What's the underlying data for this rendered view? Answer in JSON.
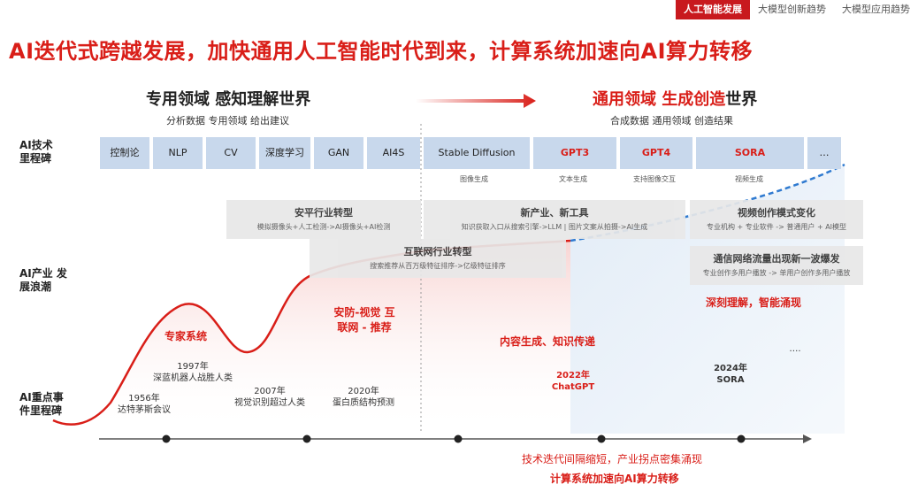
{
  "top_tabs": [
    {
      "label": "人工智能发展",
      "active": true
    },
    {
      "label": "大模型创新趋势",
      "active": false
    },
    {
      "label": "大模型应用趋势",
      "active": false
    }
  ],
  "headline": "AI迭代式跨越发展，加快通用人工智能时代到来，计算系统加速向AI算力转移",
  "left_era": {
    "title_part1": "专用领域 感知理解世界",
    "subtitle": "分析数据 专用领域 给出建议"
  },
  "right_era": {
    "title_red": "通用领域 生成创造",
    "title_black": "世界",
    "subtitle": "合成数据 通用领域 创造结果"
  },
  "row_labels": {
    "tech": "AI技术 里程碑",
    "industry": "AI产业 发展浪潮",
    "events": "AI重点事 件里程碑"
  },
  "tech_pills": [
    {
      "label": "控制论",
      "sub": "",
      "highlight": false
    },
    {
      "label": "NLP",
      "sub": "",
      "highlight": false
    },
    {
      "label": "CV",
      "sub": "",
      "highlight": false
    },
    {
      "label": "深度学习",
      "sub": "",
      "highlight": false
    },
    {
      "label": "GAN",
      "sub": "",
      "highlight": false
    },
    {
      "label": "AI4S",
      "sub": "",
      "highlight": false
    },
    {
      "label": "Stable Diffusion",
      "sub": "图像生成",
      "highlight": false
    },
    {
      "label": "GPT3",
      "sub": "文本生成",
      "highlight": true
    },
    {
      "label": "GPT4",
      "sub": "支持图像交互",
      "highlight": true
    },
    {
      "label": "SORA",
      "sub": "视频生成",
      "highlight": true
    },
    {
      "label": "…",
      "sub": "",
      "highlight": false
    }
  ],
  "industry_boxes": [
    {
      "title": "安平行业转型",
      "desc": "模拟摄像头+人工检测->AI摄像头+AI检测"
    },
    {
      "title": "互联网行业转型",
      "desc": "搜索推荐从百万级特征排序->亿级特征排序"
    },
    {
      "title": "新产业、新工具",
      "desc": "知识获取入口从搜索引擎->LLM | 图片文案从拍摄->AI生成"
    },
    {
      "title": "视频创作模式变化",
      "desc": "专业机构 + 专业软件 -> 普通用户 + AI模型"
    },
    {
      "title": "通信网络流量出现新一波爆发",
      "desc": "专业创作多用户播放 -> 单用户创作多用户播放"
    }
  ],
  "waves": [
    {
      "label": "专家系统"
    },
    {
      "label": "安防-视觉 互联网 - 推荐"
    },
    {
      "label": "内容生成、知识传递"
    },
    {
      "label": "深刻理解，智能涌现"
    }
  ],
  "events": [
    {
      "year": "1956年",
      "text": "达特茅斯会议"
    },
    {
      "year": "1997年",
      "text": "深蓝机器人战胜人类"
    },
    {
      "year": "2007年",
      "text": "视觉识别超过人类"
    },
    {
      "year": "2020年",
      "text": "蛋白质结构预测"
    },
    {
      "year": "2022年",
      "text": "ChatGPT"
    },
    {
      "year": "2024年",
      "text": "SORA"
    },
    {
      "year": "",
      "text": "…."
    }
  ],
  "footer": {
    "line1": "技术迭代间隔缩短，产业拐点密集涌现",
    "line2": "计算系统加速向AI算力转移"
  },
  "colors": {
    "accent": "#d91e18",
    "pill_bg": "#c8d8ec",
    "gen_bg": "#e9f1fa"
  }
}
